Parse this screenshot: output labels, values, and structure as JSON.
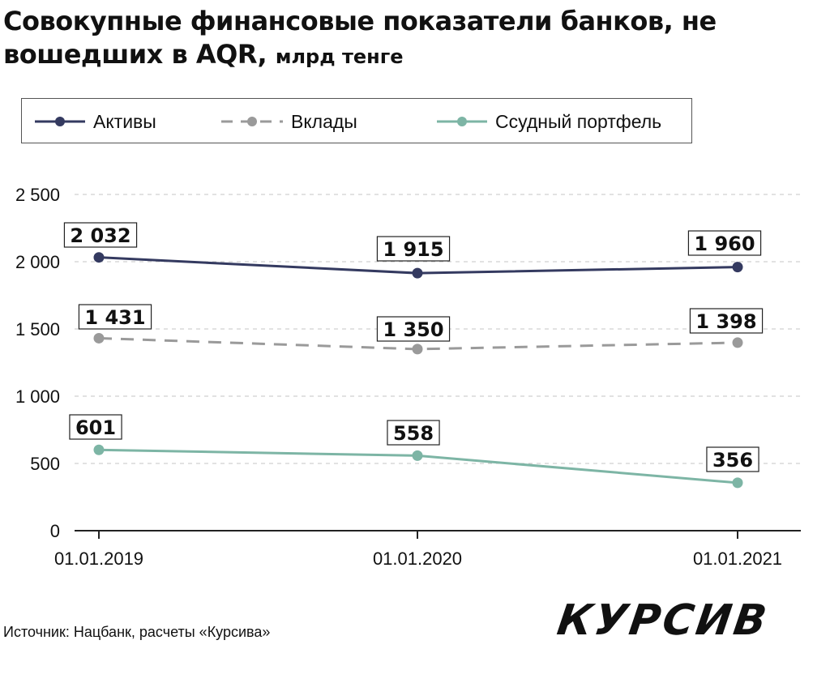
{
  "header": {
    "title_main": "Совокупные финансовые показатели банков, не вошедших в AQR,",
    "title_unit": "млрд тенге"
  },
  "legend": [
    {
      "label": "Активы",
      "color": "#343a60",
      "style": "solid"
    },
    {
      "label": "Вклады",
      "color": "#9a9a9a",
      "style": "dashed"
    },
    {
      "label": "Ссудный портфель",
      "color": "#7db5a5",
      "style": "solid"
    }
  ],
  "chart_data": {
    "type": "line",
    "title": "Совокупные финансовые показатели банков, не вошедших в AQR, млрд тенге",
    "categories": [
      "01.01.2019",
      "01.01.2020",
      "01.01.2021"
    ],
    "series": [
      {
        "name": "Активы",
        "values": [
          2032,
          1915,
          1960
        ],
        "labels": [
          "2 032",
          "1 915",
          "1 960"
        ],
        "color": "#343a60",
        "dashed": false
      },
      {
        "name": "Вклады",
        "values": [
          1431,
          1350,
          1398
        ],
        "labels": [
          "1 431",
          "1 350",
          "1 398"
        ],
        "color": "#9a9a9a",
        "dashed": true
      },
      {
        "name": "Ссудный портфель",
        "values": [
          601,
          558,
          356
        ],
        "labels": [
          "601",
          "558",
          "356"
        ],
        "color": "#7db5a5",
        "dashed": false
      }
    ],
    "yticks": [
      0,
      500,
      1000,
      1500,
      2000,
      2500
    ],
    "ytick_labels": [
      "0",
      "500",
      "1 000",
      "1 500",
      "2 000",
      "2 500"
    ],
    "ylim": [
      0,
      2500
    ],
    "grid": true,
    "legend_position": "top"
  },
  "footer": {
    "source": "Источник: Нацбанк, расчеты «Курсива»",
    "logo": "КУРСИВ"
  }
}
